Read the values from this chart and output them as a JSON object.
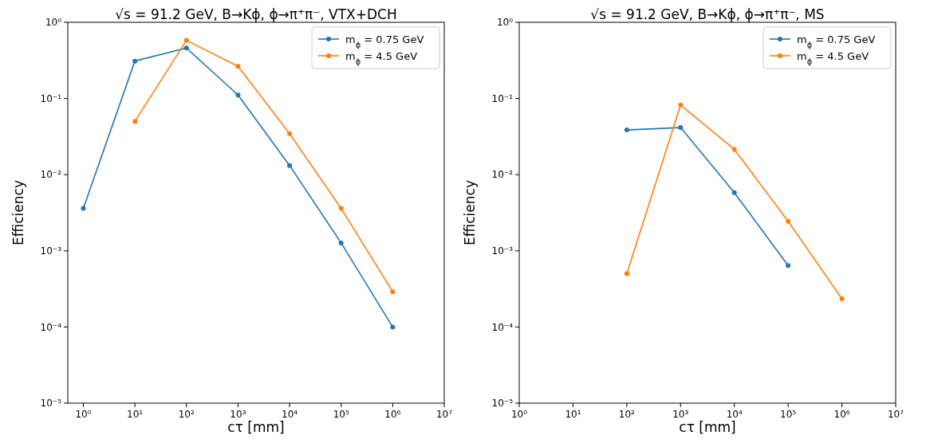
{
  "chart_data": [
    {
      "type": "line",
      "title": "√s = 91.2 GeV, B→Kϕ, ϕ→π⁺π⁻, VTX+DCH",
      "xlabel": "cτ [mm]",
      "ylabel": "Efficiency",
      "log": "xy",
      "grid": false,
      "legend": "top right",
      "marker": "circle",
      "line_style": "solid",
      "xlim": [
        0.5,
        10000000
      ],
      "ylim": [
        1e-05,
        1
      ],
      "xticks": [
        {
          "value": 1,
          "label": "10⁰"
        },
        {
          "value": 10,
          "label": "10¹"
        },
        {
          "value": 100,
          "label": "10²"
        },
        {
          "value": 1000,
          "label": "10³"
        },
        {
          "value": 10000,
          "label": "10⁴"
        },
        {
          "value": 100000,
          "label": "10⁵"
        },
        {
          "value": 1000000,
          "label": "10⁶"
        },
        {
          "value": 10000000,
          "label": "10⁷"
        }
      ],
      "yticks": [
        {
          "value": 1e-05,
          "label": "10⁻⁵"
        },
        {
          "value": 0.0001,
          "label": "10⁻⁴"
        },
        {
          "value": 0.001,
          "label": "10⁻³"
        },
        {
          "value": 0.01,
          "label": "10⁻²"
        },
        {
          "value": 0.1,
          "label": "10⁻¹"
        },
        {
          "value": 1,
          "label": "10⁰"
        }
      ],
      "series": [
        {
          "name": "m$_{ϕ}$ = 0.75 GeV",
          "color": "#1f77b4",
          "x": [
            1,
            10,
            100,
            1000,
            10000,
            100000,
            1000000
          ],
          "values": [
            0.0036,
            0.31,
            0.46,
            0.111,
            0.0132,
            0.00127,
            0.0001
          ]
        },
        {
          "name": "m$_{ϕ}$ = 4.5 GeV",
          "color": "#ff7f0e",
          "x": [
            10,
            100,
            1000,
            10000,
            100000,
            1000000
          ],
          "values": [
            0.05,
            0.58,
            0.264,
            0.0345,
            0.0036,
            0.00029
          ]
        }
      ]
    },
    {
      "type": "line",
      "title": "√s = 91.2 GeV, B→Kϕ, ϕ→π⁺π⁻, MS",
      "xlabel": "cτ [mm]",
      "ylabel": "Efficiency",
      "log": "xy",
      "grid": false,
      "legend": "top right",
      "marker": "circle",
      "line_style": "solid",
      "xlim": [
        1,
        10000000
      ],
      "ylim": [
        1e-05,
        1
      ],
      "xticks": [
        {
          "value": 1,
          "label": "10⁰"
        },
        {
          "value": 10,
          "label": "10¹"
        },
        {
          "value": 100,
          "label": "10²"
        },
        {
          "value": 1000,
          "label": "10³"
        },
        {
          "value": 10000,
          "label": "10⁴"
        },
        {
          "value": 100000,
          "label": "10⁵"
        },
        {
          "value": 1000000,
          "label": "10⁶"
        },
        {
          "value": 10000000,
          "label": "10⁷"
        }
      ],
      "yticks": [
        {
          "value": 1e-05,
          "label": "10⁻⁵"
        },
        {
          "value": 0.0001,
          "label": "10⁻⁴"
        },
        {
          "value": 0.001,
          "label": "10⁻³"
        },
        {
          "value": 0.01,
          "label": "10⁻²"
        },
        {
          "value": 0.1,
          "label": "10⁻¹"
        },
        {
          "value": 1,
          "label": "10⁰"
        }
      ],
      "series": [
        {
          "name": "m$_{ϕ}$ = 0.75 GeV",
          "color": "#1f77b4",
          "x": [
            100,
            1000,
            10000,
            100000
          ],
          "values": [
            0.0386,
            0.0415,
            0.0058,
            0.00064
          ]
        },
        {
          "name": "m$_{ϕ}$ = 4.5 GeV",
          "color": "#ff7f0e",
          "x": [
            100,
            1000,
            10000,
            100000,
            1000000
          ],
          "values": [
            0.0005,
            0.082,
            0.0215,
            0.00244,
            0.000235
          ]
        }
      ]
    }
  ]
}
